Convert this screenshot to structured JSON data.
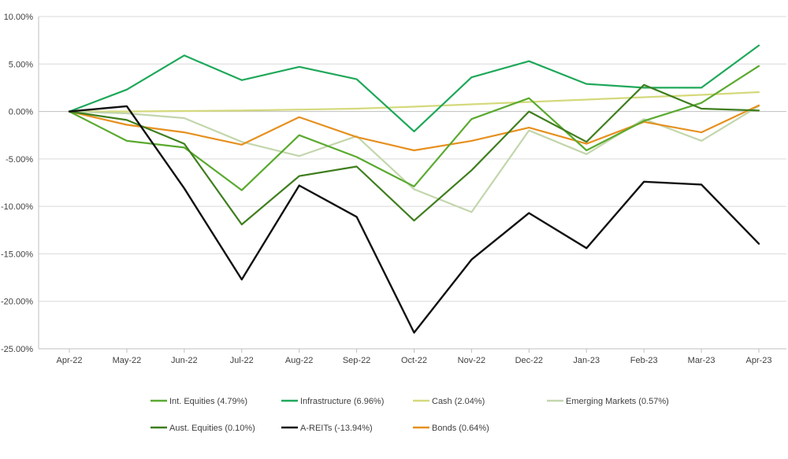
{
  "chart_data": {
    "type": "line",
    "title": "",
    "xlabel": "",
    "ylabel": "",
    "ylim": [
      -25,
      10
    ],
    "yticks": [
      10,
      5,
      0,
      -5,
      -10,
      -15,
      -20,
      -25
    ],
    "ytick_labels": [
      "10.00%",
      "5.00%",
      "0.00%",
      "-5.00%",
      "-10.00%",
      "-15.00%",
      "-20.00%",
      "-25.00%"
    ],
    "categories": [
      "Apr-22",
      "May-22",
      "Jun-22",
      "Jul-22",
      "Aug-22",
      "Sep-22",
      "Oct-22",
      "Nov-22",
      "Dec-22",
      "Jan-23",
      "Feb-23",
      "Mar-23",
      "Apr-23"
    ],
    "grid": "horizontal",
    "legend_position": "bottom",
    "series": [
      {
        "name": "Cash (2.04%)",
        "color": "#d4d97c",
        "values": [
          0,
          0,
          0.05,
          0.1,
          0.2,
          0.3,
          0.5,
          0.75,
          1.0,
          1.25,
          1.5,
          1.75,
          2.04
        ]
      },
      {
        "name": "Emerging Markets (0.57%)",
        "color": "#c3d6ac",
        "values": [
          0,
          -0.2,
          -0.7,
          -3.2,
          -4.7,
          -2.6,
          -8.2,
          -10.6,
          -2.0,
          -4.5,
          -0.8,
          -3.1,
          0.57
        ]
      },
      {
        "name": "Bonds (0.64%)",
        "color": "#e6901f",
        "values": [
          0,
          -1.4,
          -2.2,
          -3.5,
          -0.6,
          -2.7,
          -4.1,
          -3.1,
          -1.7,
          -3.4,
          -1.1,
          -2.2,
          0.64
        ]
      },
      {
        "name": "Infrastructure (6.96%)",
        "color": "#1fa85a",
        "values": [
          0,
          2.3,
          5.9,
          3.3,
          4.7,
          3.4,
          -2.1,
          3.6,
          5.3,
          2.9,
          2.5,
          2.5,
          6.96
        ]
      },
      {
        "name": "Int. Equities (4.79%)",
        "color": "#5aaa2f",
        "values": [
          0,
          -3.1,
          -3.8,
          -8.3,
          -2.5,
          -4.8,
          -7.9,
          -0.8,
          1.4,
          -4.1,
          -1.0,
          0.9,
          4.79
        ]
      },
      {
        "name": "Aust. Equities (0.10%)",
        "color": "#3f7e1e",
        "values": [
          0,
          -0.9,
          -3.4,
          -11.9,
          -6.8,
          -5.8,
          -11.5,
          -6.2,
          0.0,
          -3.2,
          2.8,
          0.3,
          0.1
        ]
      },
      {
        "name": "A-REITs (-13.94%)",
        "color": "#111111",
        "values": [
          0,
          0.55,
          -8.1,
          -17.7,
          -7.8,
          -11.1,
          -23.3,
          -15.6,
          -10.7,
          -14.4,
          -7.4,
          -7.7,
          -13.94
        ]
      }
    ],
    "legend": [
      {
        "name": "Int. Equities (4.79%)",
        "color": "#5aaa2f"
      },
      {
        "name": "Infrastructure (6.96%)",
        "color": "#1fa85a"
      },
      {
        "name": "Cash (2.04%)",
        "color": "#d4d97c"
      },
      {
        "name": "Emerging Markets (0.57%)",
        "color": "#c3d6ac"
      },
      {
        "name": "Aust. Equities (0.10%)",
        "color": "#3f7e1e"
      },
      {
        "name": "A-REITs (-13.94%)",
        "color": "#111111"
      },
      {
        "name": "Bonds (0.64%)",
        "color": "#e6901f"
      }
    ]
  }
}
